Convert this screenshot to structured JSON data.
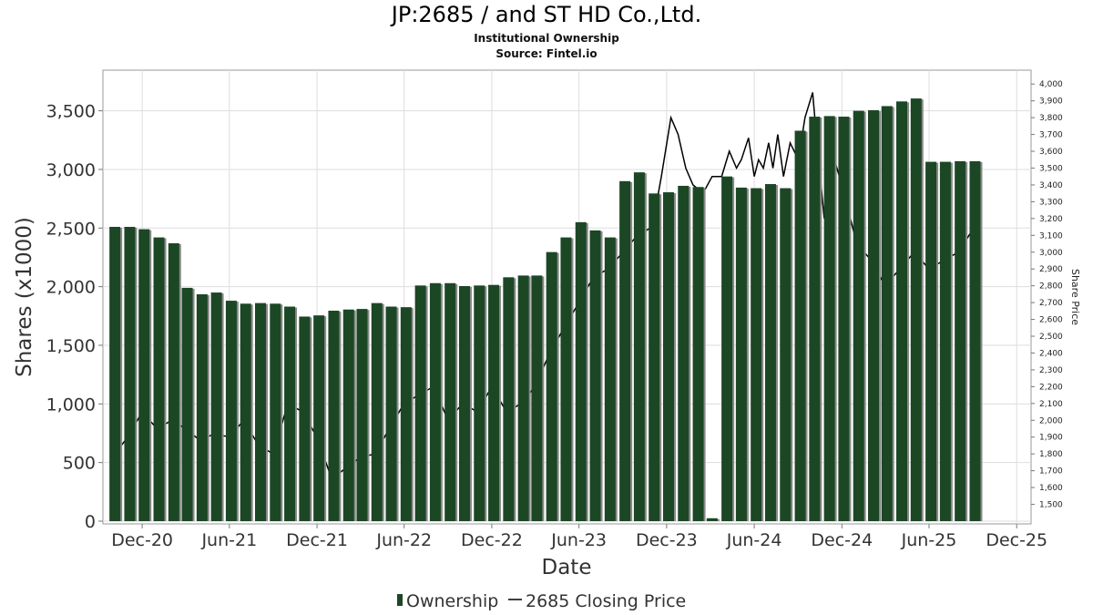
{
  "header": {
    "title": "JP:2685 / and ST HD Co.,Ltd.",
    "subtitle": "Institutional Ownership",
    "source": "Source: Fintel.io"
  },
  "legend": {
    "ownership_label": "Ownership",
    "price_label": "2685 Closing Price"
  },
  "colors": {
    "bar": "#1c4725",
    "bar_shadow": "#8a8a8a",
    "line": "#000000",
    "grid": "#dddddd"
  },
  "chart_data": {
    "type": "bar",
    "xlabel": "Date",
    "ylabel": "Shares (x1000)",
    "y2label": "Share Price",
    "ylim": [
      0,
      3800
    ],
    "y2lim": [
      1400,
      4050
    ],
    "xlim": [
      "2020-09-10",
      "2025-12-31"
    ],
    "yticks": [
      0,
      500,
      1000,
      1500,
      2000,
      2500,
      3000,
      3500
    ],
    "ytick_labels": [
      "0",
      "500",
      "1,000",
      "1,500",
      "2,000",
      "2,500",
      "3,000",
      "3,500"
    ],
    "y2ticks": [
      1500,
      1600,
      1700,
      1800,
      1900,
      2000,
      2100,
      2200,
      2300,
      2400,
      2500,
      2600,
      2700,
      2800,
      2900,
      3000,
      3100,
      3200,
      3300,
      3400,
      3500,
      3600,
      3700,
      3800,
      3900,
      4000
    ],
    "y2tick_labels": [
      "1,500",
      "1,600",
      "1,700",
      "1,800",
      "1,900",
      "2,000",
      "2,100",
      "2,200",
      "2,300",
      "2,400",
      "2,500",
      "2,600",
      "2,700",
      "2,800",
      "2,900",
      "3,000",
      "3,100",
      "3,200",
      "3,300",
      "3,400",
      "3,500",
      "3,600",
      "3,700",
      "3,800",
      "3,900",
      "4,000"
    ],
    "xticks": [
      "2020-12-01",
      "2021-06-01",
      "2021-12-01",
      "2022-06-01",
      "2022-12-01",
      "2023-06-01",
      "2023-12-01",
      "2024-06-01",
      "2024-12-01",
      "2025-06-01",
      "2025-12-01"
    ],
    "xtick_labels": [
      "Dec-20",
      "Jun-21",
      "Dec-21",
      "Jun-22",
      "Dec-22",
      "Jun-23",
      "Dec-23",
      "Jun-24",
      "Dec-24",
      "Jun-25",
      "Dec-25"
    ],
    "grid": true,
    "legend_position": "bottom",
    "series": [
      {
        "name": "Ownership",
        "type": "bar",
        "x": [
          "2020-10-05",
          "2020-11-05",
          "2020-12-05",
          "2021-01-05",
          "2021-02-05",
          "2021-03-05",
          "2021-04-05",
          "2021-05-05",
          "2021-06-05",
          "2021-07-05",
          "2021-08-05",
          "2021-09-05",
          "2021-10-05",
          "2021-11-05",
          "2021-12-05",
          "2022-01-05",
          "2022-02-05",
          "2022-03-05",
          "2022-04-05",
          "2022-05-05",
          "2022-06-05",
          "2022-07-05",
          "2022-08-05",
          "2022-09-05",
          "2022-10-05",
          "2022-11-05",
          "2022-12-05",
          "2023-01-05",
          "2023-02-05",
          "2023-03-05",
          "2023-04-05",
          "2023-05-05",
          "2023-06-05",
          "2023-07-05",
          "2023-08-05",
          "2023-09-05",
          "2023-10-05",
          "2023-11-05",
          "2023-12-05",
          "2024-01-05",
          "2024-02-05",
          "2024-03-05",
          "2024-04-05",
          "2024-05-05",
          "2024-06-05",
          "2024-07-05",
          "2024-08-05",
          "2024-09-05",
          "2024-10-05",
          "2024-11-05",
          "2024-12-05",
          "2025-01-05",
          "2025-02-05",
          "2025-03-05",
          "2025-04-05",
          "2025-05-05",
          "2025-06-05",
          "2025-07-05",
          "2025-08-05",
          "2025-09-05"
        ],
        "values": [
          2510,
          2510,
          2490,
          2420,
          2370,
          1990,
          1935,
          1950,
          1880,
          1855,
          1860,
          1855,
          1830,
          1745,
          1755,
          1795,
          1805,
          1810,
          1860,
          1830,
          1825,
          2010,
          2030,
          2030,
          2005,
          2010,
          2015,
          2080,
          2095,
          2095,
          2295,
          2420,
          2550,
          2480,
          2420,
          2900,
          2975,
          2795,
          2805,
          2860,
          2850,
          25,
          2940,
          2845,
          2840,
          2875,
          2840,
          3330,
          3450,
          3455,
          3450,
          3500,
          3505,
          3540,
          3580,
          3605,
          3065,
          3065,
          3070,
          3070
        ]
      },
      {
        "name": "2685 Closing Price",
        "type": "line",
        "x": [
          "2020-10-05",
          "2020-11-01",
          "2020-12-01",
          "2021-01-01",
          "2021-02-01",
          "2021-03-01",
          "2021-04-01",
          "2021-05-01",
          "2021-06-01",
          "2021-07-01",
          "2021-08-01",
          "2021-09-01",
          "2021-10-01",
          "2021-11-01",
          "2021-12-01",
          "2022-01-01",
          "2022-02-01",
          "2022-03-01",
          "2022-04-01",
          "2022-05-01",
          "2022-06-01",
          "2022-07-01",
          "2022-08-01",
          "2022-09-01",
          "2022-10-01",
          "2022-11-01",
          "2022-12-01",
          "2023-01-01",
          "2023-02-01",
          "2023-03-01",
          "2023-04-01",
          "2023-05-01",
          "2023-06-01",
          "2023-07-01",
          "2023-08-01",
          "2023-09-01",
          "2023-10-01",
          "2023-11-01",
          "2023-11-20",
          "2023-12-10",
          "2023-12-25",
          "2024-01-10",
          "2024-01-25",
          "2024-02-15",
          "2024-03-05",
          "2024-03-25",
          "2024-04-10",
          "2024-04-25",
          "2024-05-05",
          "2024-05-20",
          "2024-06-01",
          "2024-06-10",
          "2024-06-20",
          "2024-07-01",
          "2024-07-10",
          "2024-07-20",
          "2024-08-01",
          "2024-08-15",
          "2024-09-01",
          "2024-09-15",
          "2024-10-01",
          "2024-10-10",
          "2024-10-25",
          "2024-11-10",
          "2024-12-01",
          "2025-01-01",
          "2025-02-01",
          "2025-03-01",
          "2025-04-01",
          "2025-05-01",
          "2025-06-01",
          "2025-07-01",
          "2025-08-01",
          "2025-09-15"
        ],
        "values": [
          1800,
          1900,
          2050,
          1950,
          2000,
          1950,
          1880,
          1920,
          1900,
          2000,
          1850,
          1800,
          2100,
          2050,
          1900,
          1650,
          1720,
          1780,
          1800,
          1950,
          2100,
          2150,
          2200,
          2000,
          2100,
          2050,
          2200,
          2050,
          2100,
          2200,
          2400,
          2550,
          2700,
          2850,
          2900,
          3000,
          3100,
          3150,
          3450,
          3800,
          3700,
          3500,
          3400,
          3350,
          3450,
          3450,
          3600,
          3500,
          3550,
          3680,
          3450,
          3550,
          3500,
          3650,
          3500,
          3700,
          3450,
          3650,
          3550,
          3800,
          3950,
          3650,
          3200,
          3600,
          3400,
          3050,
          2950,
          2800,
          2900,
          3000,
          2900,
          2950,
          3000,
          3200
        ]
      }
    ]
  }
}
